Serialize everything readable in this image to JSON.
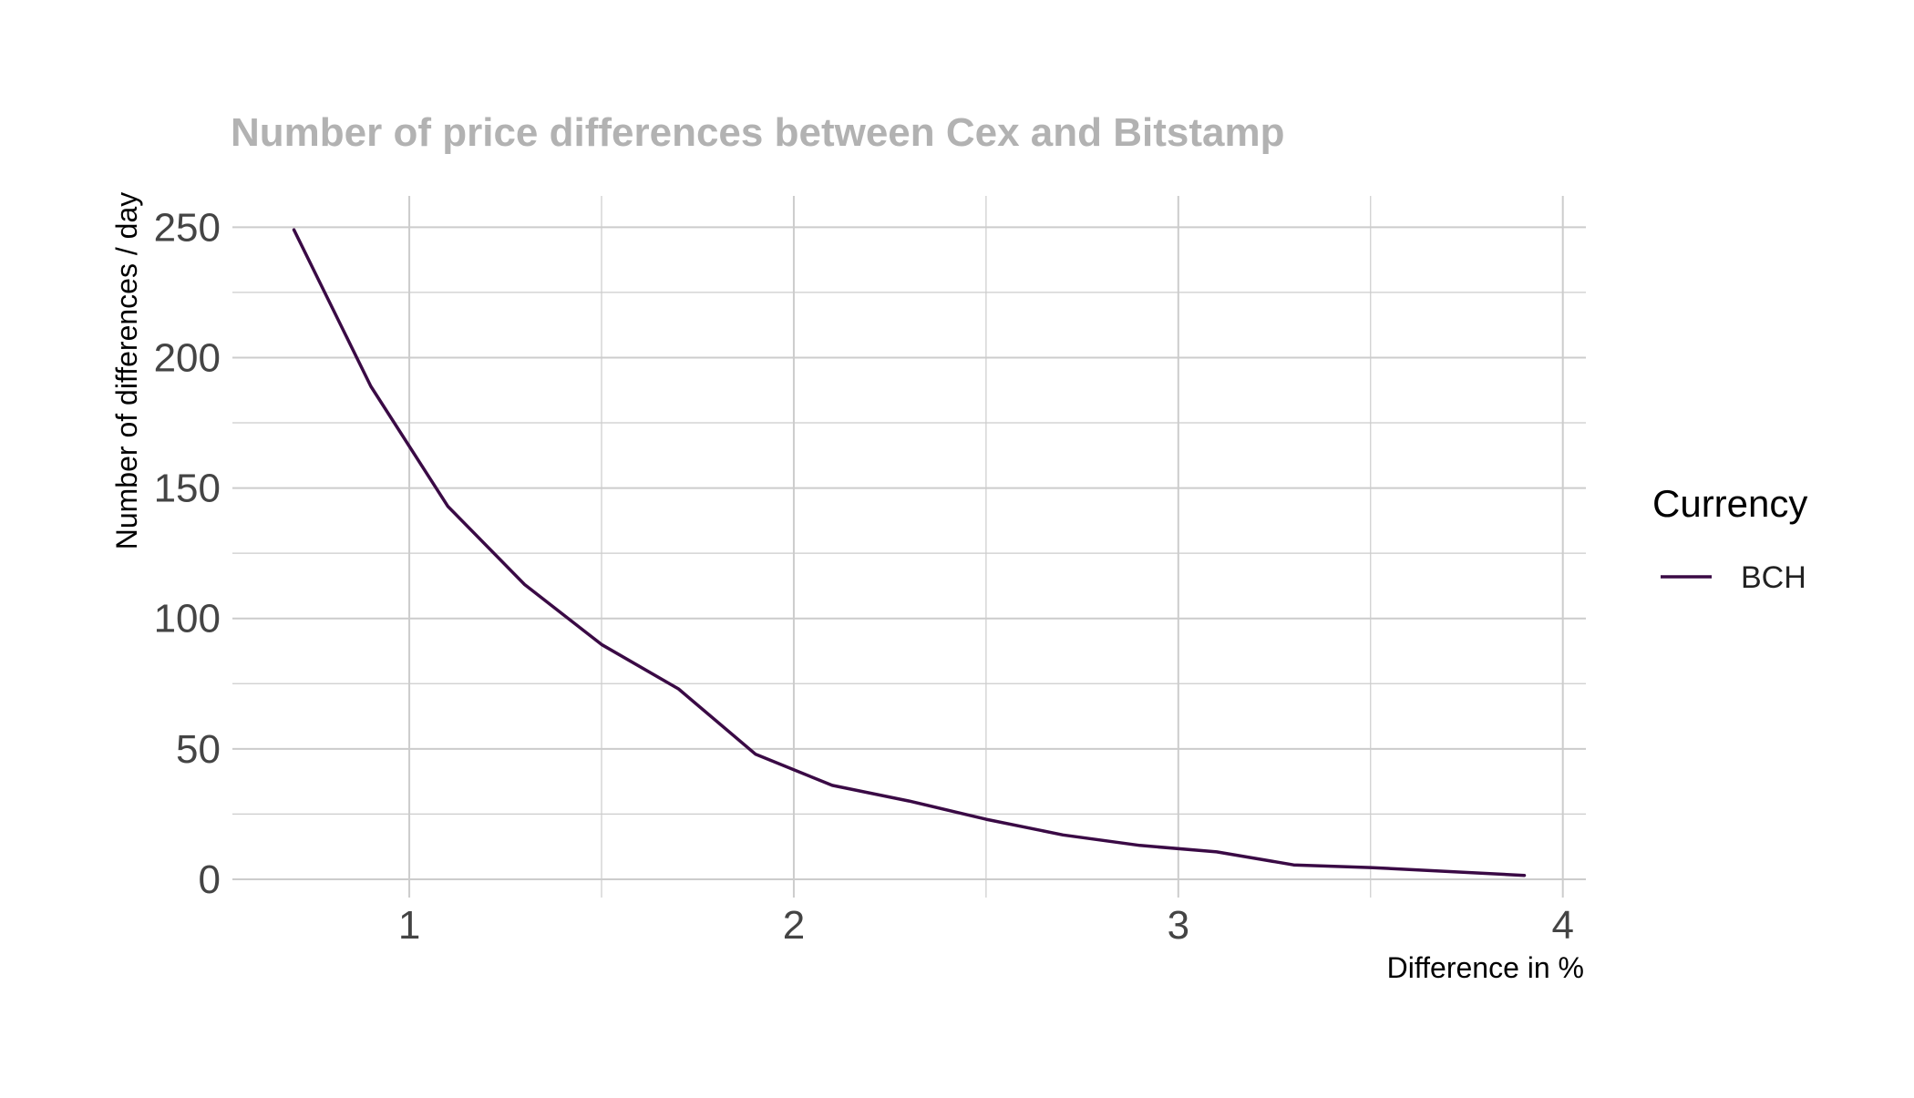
{
  "chart_data": {
    "type": "line",
    "title": "Number of price differences between Cex and Bitstamp",
    "xlabel": "Difference in %",
    "ylabel": "Number of differences / day",
    "xlim": [
      0.54,
      4.06
    ],
    "ylim": [
      -7,
      262
    ],
    "x_ticks": [
      1,
      2,
      3,
      4
    ],
    "y_ticks": [
      0,
      50,
      100,
      150,
      200,
      250
    ],
    "x_tick_labels": [
      "1",
      "2",
      "3",
      "4"
    ],
    "y_tick_labels": [
      "0",
      "50",
      "100",
      "150",
      "200",
      "250"
    ],
    "grid": true,
    "legend": {
      "title": "Currency",
      "position": "right"
    },
    "series": [
      {
        "name": "BCH",
        "color": "#3a0a45",
        "x": [
          0.7,
          0.9,
          1.1,
          1.3,
          1.5,
          1.7,
          1.9,
          2.1,
          2.3,
          2.5,
          2.7,
          2.9,
          3.1,
          3.3,
          3.5,
          3.7,
          3.9
        ],
        "y": [
          249,
          189,
          143,
          113,
          90,
          73,
          48,
          36,
          30,
          23,
          17,
          13,
          10.5,
          5.5,
          4.5,
          3,
          1.5
        ]
      }
    ]
  },
  "colors": {
    "title": "#b2b2b2",
    "grid": "#cccccc",
    "tick_label": "#444444",
    "axis_title": "#000000"
  }
}
